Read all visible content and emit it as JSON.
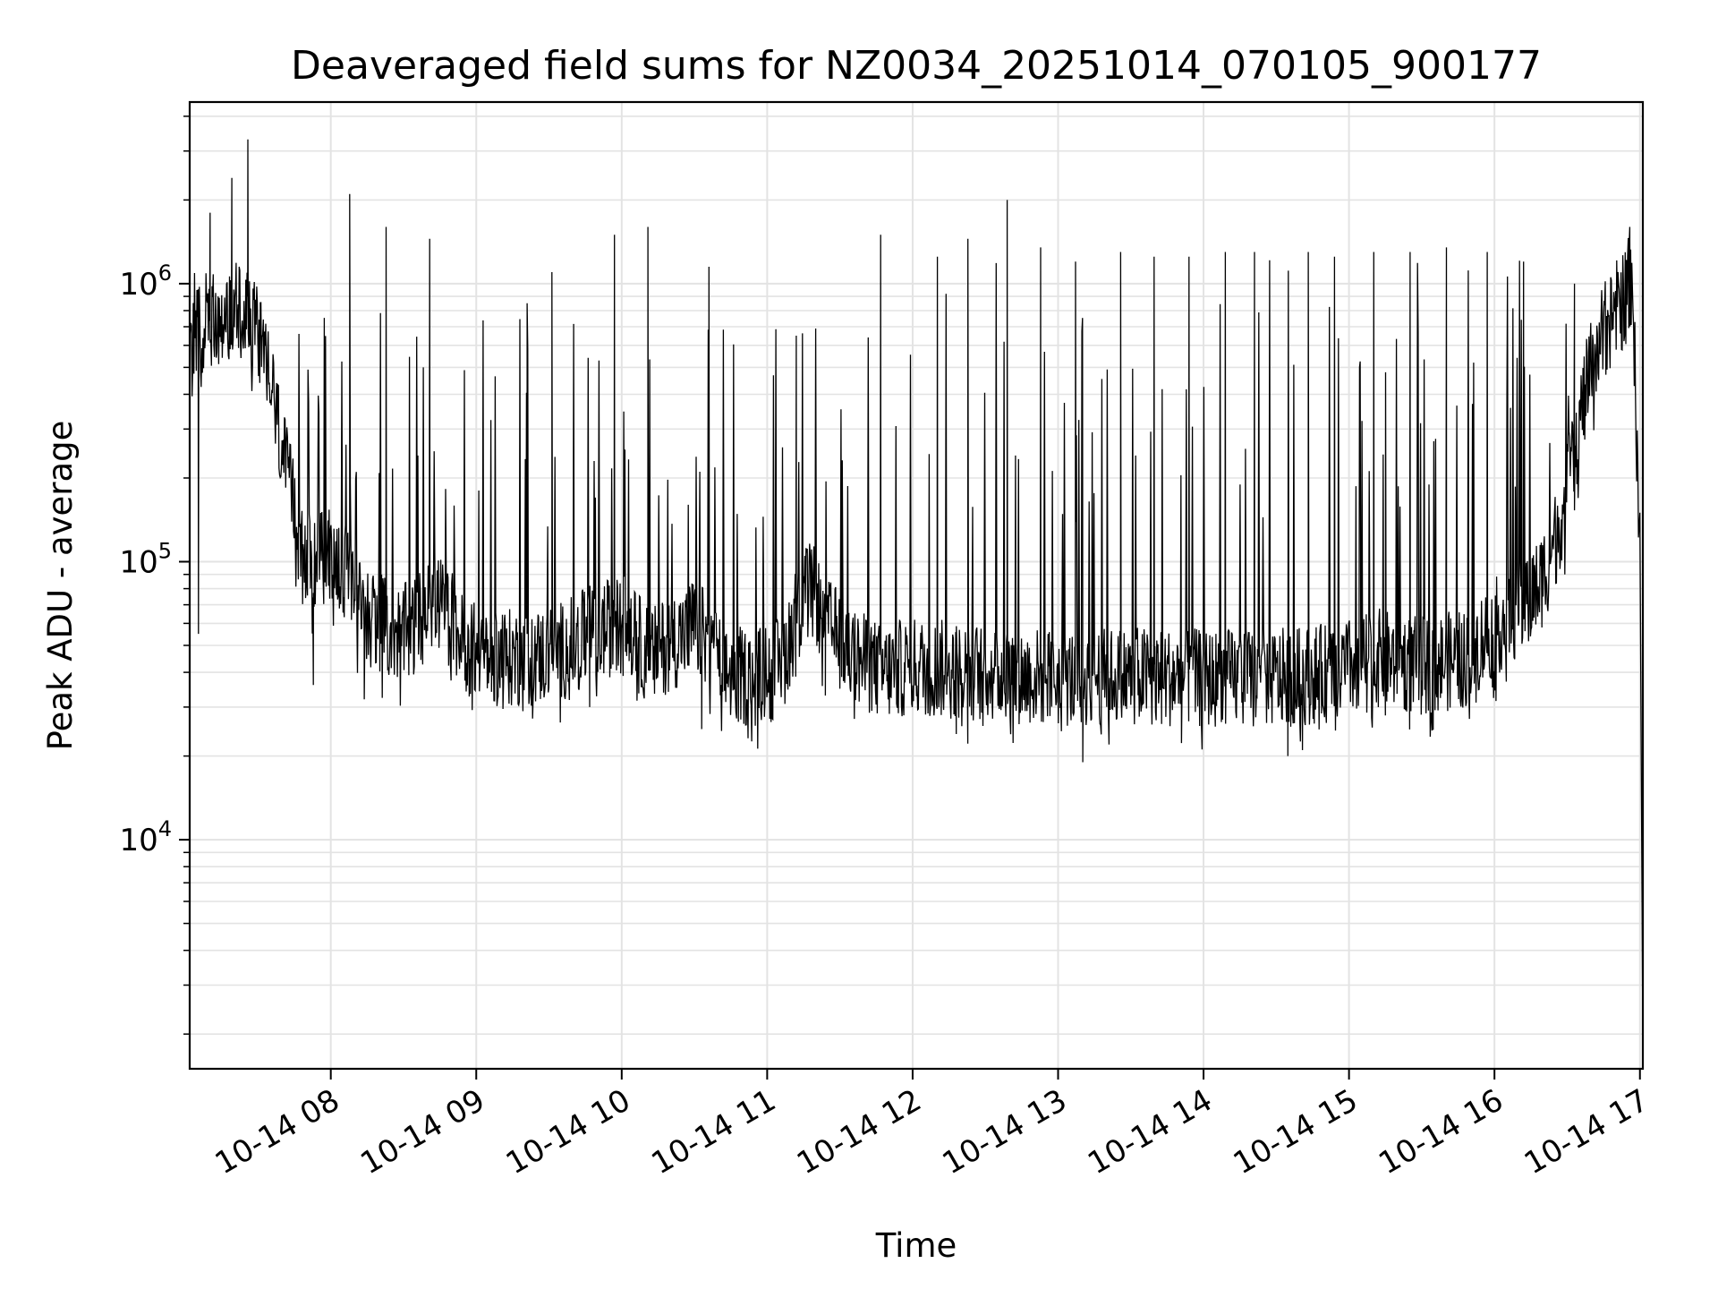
{
  "chart_data": {
    "type": "line",
    "title": "Deaveraged field sums for NZ0034_20251014_070105_900177",
    "xlabel": "Time",
    "ylabel": "Peak ADU - average",
    "yscale": "log",
    "ylim": [
      1500,
      4500000
    ],
    "xlim": [
      7.03,
      17.02
    ],
    "grid": true,
    "line_color": "#000000",
    "x_ticks": [
      {
        "value": 8,
        "label": "10-14 08"
      },
      {
        "value": 9,
        "label": "10-14 09"
      },
      {
        "value": 10,
        "label": "10-14 10"
      },
      {
        "value": 11,
        "label": "10-14 11"
      },
      {
        "value": 12,
        "label": "10-14 12"
      },
      {
        "value": 13,
        "label": "10-14 13"
      },
      {
        "value": 14,
        "label": "10-14 14"
      },
      {
        "value": 15,
        "label": "10-14 15"
      },
      {
        "value": 16,
        "label": "10-14 16"
      },
      {
        "value": 17,
        "label": "10-14 17"
      }
    ],
    "y_ticks": [
      {
        "value": 10000,
        "base": "10",
        "exp": "4"
      },
      {
        "value": 100000,
        "base": "10",
        "exp": "5"
      },
      {
        "value": 1000000,
        "base": "10",
        "exp": "6"
      }
    ],
    "series": [
      {
        "name": "deaveraged_field_sum",
        "baseline": [
          [
            7.03,
            500000
          ],
          [
            7.1,
            700000
          ],
          [
            7.2,
            750000
          ],
          [
            7.3,
            800000
          ],
          [
            7.4,
            780000
          ],
          [
            7.5,
            700000
          ],
          [
            7.6,
            400000
          ],
          [
            7.7,
            200000
          ],
          [
            7.8,
            110000
          ],
          [
            7.9,
            100000
          ],
          [
            8.0,
            110000
          ],
          [
            8.1,
            90000
          ],
          [
            8.2,
            70000
          ],
          [
            8.3,
            62000
          ],
          [
            8.4,
            57000
          ],
          [
            8.5,
            55000
          ],
          [
            8.6,
            60000
          ],
          [
            8.7,
            75000
          ],
          [
            8.8,
            65000
          ],
          [
            8.9,
            52000
          ],
          [
            9.0,
            47000
          ],
          [
            9.2,
            45000
          ],
          [
            9.4,
            45000
          ],
          [
            9.6,
            48000
          ],
          [
            9.8,
            55000
          ],
          [
            10.0,
            60000
          ],
          [
            10.1,
            52000
          ],
          [
            10.2,
            45000
          ],
          [
            10.3,
            50000
          ],
          [
            10.5,
            58000
          ],
          [
            10.6,
            52000
          ],
          [
            10.7,
            40000
          ],
          [
            10.9,
            38000
          ],
          [
            11.1,
            42000
          ],
          [
            11.2,
            65000
          ],
          [
            11.3,
            80000
          ],
          [
            11.4,
            60000
          ],
          [
            11.6,
            45000
          ],
          [
            11.8,
            40000
          ],
          [
            12.0,
            42000
          ],
          [
            12.5,
            40000
          ],
          [
            13.0,
            38000
          ],
          [
            13.5,
            39000
          ],
          [
            14.0,
            38000
          ],
          [
            14.5,
            38000
          ],
          [
            14.9,
            40000
          ],
          [
            15.2,
            45000
          ],
          [
            15.5,
            42000
          ],
          [
            15.8,
            45000
          ],
          [
            16.0,
            58000
          ],
          [
            16.2,
            70000
          ],
          [
            16.3,
            80000
          ],
          [
            16.4,
            110000
          ],
          [
            16.5,
            180000
          ],
          [
            16.6,
            350000
          ],
          [
            16.7,
            600000
          ],
          [
            16.8,
            750000
          ],
          [
            16.9,
            900000
          ],
          [
            16.95,
            1100000
          ],
          [
            16.98,
            220000
          ],
          [
            17.0,
            150000
          ],
          [
            17.02,
            1800
          ]
        ],
        "spikes": [
          [
            7.17,
            1800000
          ],
          [
            7.32,
            2400000
          ],
          [
            7.43,
            3300000
          ],
          [
            8.13,
            2100000
          ],
          [
            8.38,
            1600000
          ],
          [
            8.68,
            1450000
          ],
          [
            9.35,
            850000
          ],
          [
            9.52,
            1100000
          ],
          [
            9.95,
            1500000
          ],
          [
            10.18,
            1600000
          ],
          [
            10.6,
            1150000
          ],
          [
            11.2,
            650000
          ],
          [
            11.78,
            1500000
          ],
          [
            12.17,
            1250000
          ],
          [
            12.38,
            1450000
          ],
          [
            12.65,
            2000000
          ],
          [
            12.88,
            1350000
          ],
          [
            13.12,
            1200000
          ],
          [
            13.43,
            1300000
          ],
          [
            13.66,
            1250000
          ],
          [
            13.9,
            1250000
          ],
          [
            14.15,
            1300000
          ],
          [
            14.35,
            1300000
          ],
          [
            14.72,
            1300000
          ],
          [
            14.9,
            1250000
          ],
          [
            15.17,
            1300000
          ],
          [
            15.42,
            1300000
          ],
          [
            15.67,
            1350000
          ],
          [
            15.95,
            1300000
          ],
          [
            16.2,
            1200000
          ],
          [
            16.55,
            1000000
          ],
          [
            16.93,
            1600000
          ]
        ],
        "dips": [
          [
            7.09,
            55000
          ],
          [
            7.88,
            36000
          ],
          [
            8.23,
            32000
          ],
          [
            9.78,
            30000
          ],
          [
            10.55,
            25000
          ],
          [
            11.4,
            33000
          ],
          [
            12.3,
            24000
          ],
          [
            13.17,
            19000
          ],
          [
            13.35,
            22000
          ],
          [
            14.58,
            20000
          ],
          [
            14.68,
            21000
          ],
          [
            15.25,
            28000
          ]
        ]
      }
    ]
  }
}
